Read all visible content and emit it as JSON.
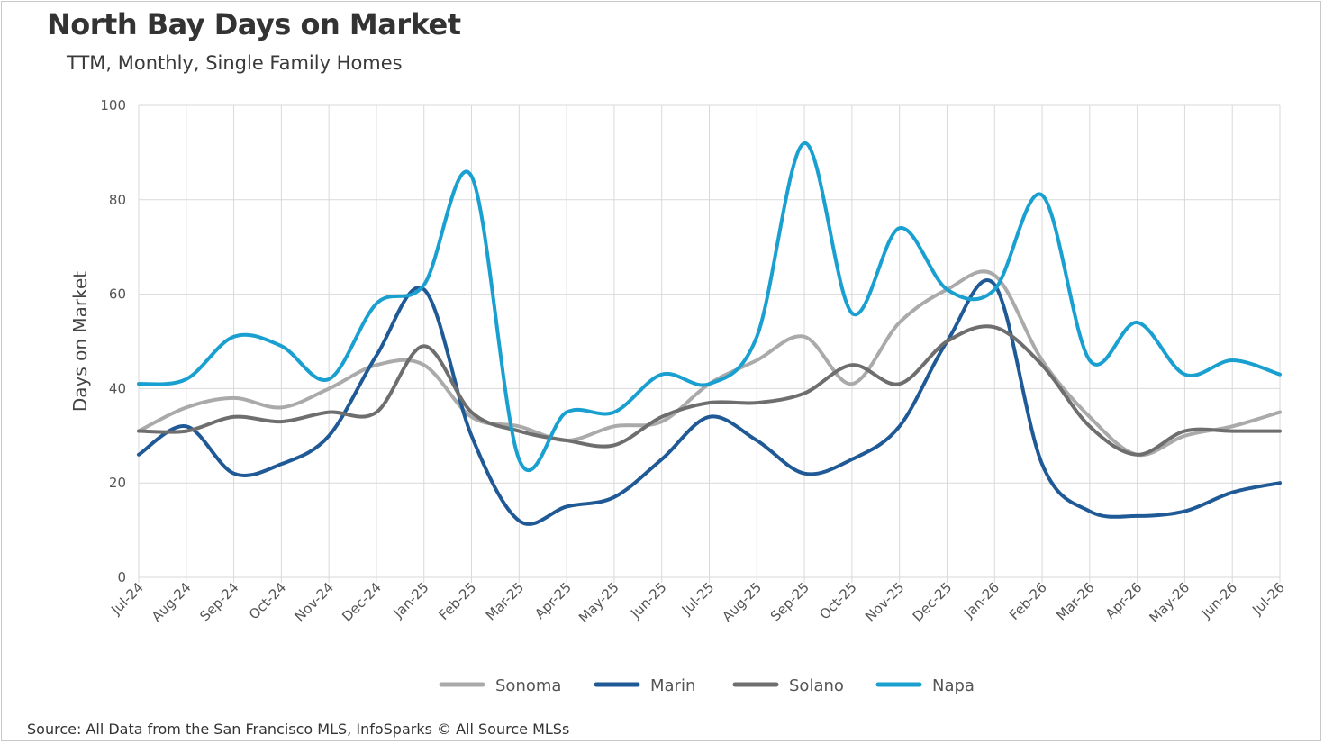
{
  "title": "North Bay Days on Market",
  "subtitle": "TTM, Monthly, Single Family Homes",
  "source": "Source: All Data from the San Francisco MLS, InfoSparks © All Source MLSs",
  "chart_data": {
    "type": "line",
    "title": "North Bay Days on Market",
    "subtitle": "TTM, Monthly, Single Family Homes",
    "xlabel": "",
    "ylabel": "Days on Market",
    "ylim": [
      0,
      100
    ],
    "yticks": [
      0,
      20,
      40,
      60,
      80,
      100
    ],
    "grid": true,
    "legend": "bottom",
    "categories": [
      "Jul-24",
      "Aug-24",
      "Sep-24",
      "Oct-24",
      "Nov-24",
      "Dec-24",
      "Jan-25",
      "Feb-25",
      "Mar-25",
      "Apr-25",
      "May-25",
      "Jun-25",
      "Jul-25",
      "Aug-25",
      "Sep-25",
      "Oct-25",
      "Nov-25",
      "Dec-25",
      "Jan-26",
      "Feb-26",
      "Mar-26",
      "Apr-26",
      "May-26",
      "Jun-26",
      "Jul-26"
    ],
    "series": [
      {
        "name": "Sonoma",
        "color": "#aaaaaa",
        "values": [
          31,
          36,
          38,
          36,
          40,
          45,
          45,
          34,
          32,
          29,
          32,
          33,
          41,
          46,
          51,
          41,
          54,
          61,
          64,
          46,
          34,
          26,
          30,
          32,
          35
        ]
      },
      {
        "name": "Marin",
        "color": "#1f5a96",
        "values": [
          26,
          32,
          22,
          24,
          30,
          47,
          61,
          30,
          12,
          15,
          17,
          25,
          34,
          29,
          22,
          25,
          32,
          50,
          62,
          24,
          14,
          13,
          14,
          18,
          20
        ]
      },
      {
        "name": "Solano",
        "color": "#6e6e6e",
        "values": [
          31,
          31,
          34,
          33,
          35,
          35,
          49,
          35,
          31,
          29,
          28,
          34,
          37,
          37,
          39,
          45,
          41,
          50,
          53,
          45,
          32,
          26,
          31,
          31,
          31
        ]
      },
      {
        "name": "Napa",
        "color": "#1aa0d0",
        "values": [
          41,
          42,
          51,
          49,
          42,
          58,
          62,
          85,
          25,
          35,
          35,
          43,
          41,
          51,
          92,
          56,
          74,
          61,
          61,
          81,
          46,
          54,
          43,
          46,
          43
        ]
      }
    ]
  }
}
